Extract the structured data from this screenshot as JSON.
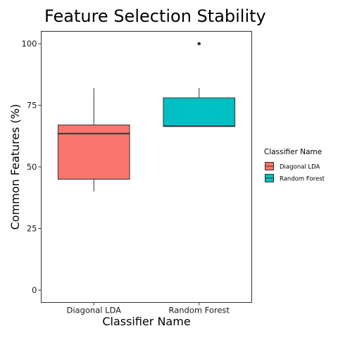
{
  "chart_data": {
    "type": "boxplot",
    "title": "Feature Selection Stability",
    "xlabel": "Classifier Name",
    "ylabel": "Common Features (%)",
    "ylim": [
      -5,
      105
    ],
    "yticks": [
      0,
      25,
      50,
      75,
      100
    ],
    "grid": false,
    "legend": {
      "title": "Classifier Name",
      "placement": "right",
      "entries": [
        "Diagonal LDA",
        "Random Forest"
      ]
    },
    "categories": [
      "Diagonal LDA",
      "Random Forest"
    ],
    "boxes": [
      {
        "name": "Diagonal LDA",
        "color": "#F8766D",
        "min": 40,
        "q1": 45,
        "median": 63.5,
        "q3": 67,
        "max": 82,
        "outliers": []
      },
      {
        "name": "Random Forest",
        "color": "#00BFC4",
        "min": 66.5,
        "q1": 66.5,
        "median": 66.5,
        "q3": 78,
        "max": 82,
        "outliers": [
          100
        ]
      }
    ]
  }
}
